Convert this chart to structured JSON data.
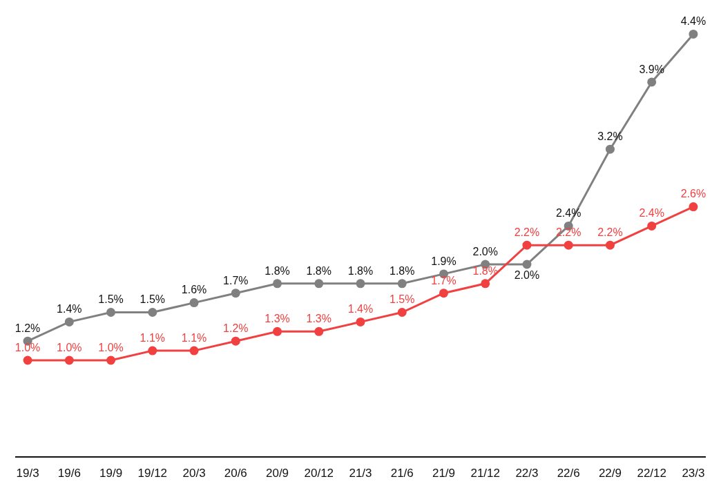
{
  "chart_data": {
    "type": "line",
    "categories": [
      "19/3",
      "19/6",
      "19/9",
      "19/12",
      "20/3",
      "20/6",
      "20/9",
      "20/12",
      "21/3",
      "21/6",
      "21/9",
      "21/12",
      "22/3",
      "22/6",
      "22/9",
      "22/12",
      "23/3"
    ],
    "series": [
      {
        "color": "#808080",
        "values": [
          1.2,
          1.4,
          1.5,
          1.5,
          1.6,
          1.7,
          1.8,
          1.8,
          1.8,
          1.8,
          1.9,
          2.0,
          2.0,
          2.4,
          3.2,
          3.9,
          4.4
        ],
        "value_labels": [
          "1.2%",
          "1.4%",
          "1.5%",
          "1.5%",
          "1.6%",
          "1.7%",
          "1.8%",
          "1.8%",
          "1.8%",
          "1.8%",
          "1.9%",
          "2.0%",
          "2.0%",
          "2.4%",
          "3.2%",
          "3.9%",
          "4.4%"
        ]
      },
      {
        "color": "#f04040",
        "values": [
          1.0,
          1.0,
          1.0,
          1.1,
          1.1,
          1.2,
          1.3,
          1.3,
          1.4,
          1.5,
          1.7,
          1.8,
          2.2,
          2.2,
          2.2,
          2.4,
          2.6
        ],
        "value_labels": [
          "1.0%",
          "1.0%",
          "1.0%",
          "1.1%",
          "1.1%",
          "1.2%",
          "1.3%",
          "1.3%",
          "1.4%",
          "1.5%",
          "1.7%",
          "1.8%",
          "2.2%",
          "2.2%",
          "2.2%",
          "2.4%",
          "2.6%"
        ]
      }
    ],
    "marker": "circle",
    "line_style": "solid",
    "grid": false,
    "tick_labels": "x"
  }
}
